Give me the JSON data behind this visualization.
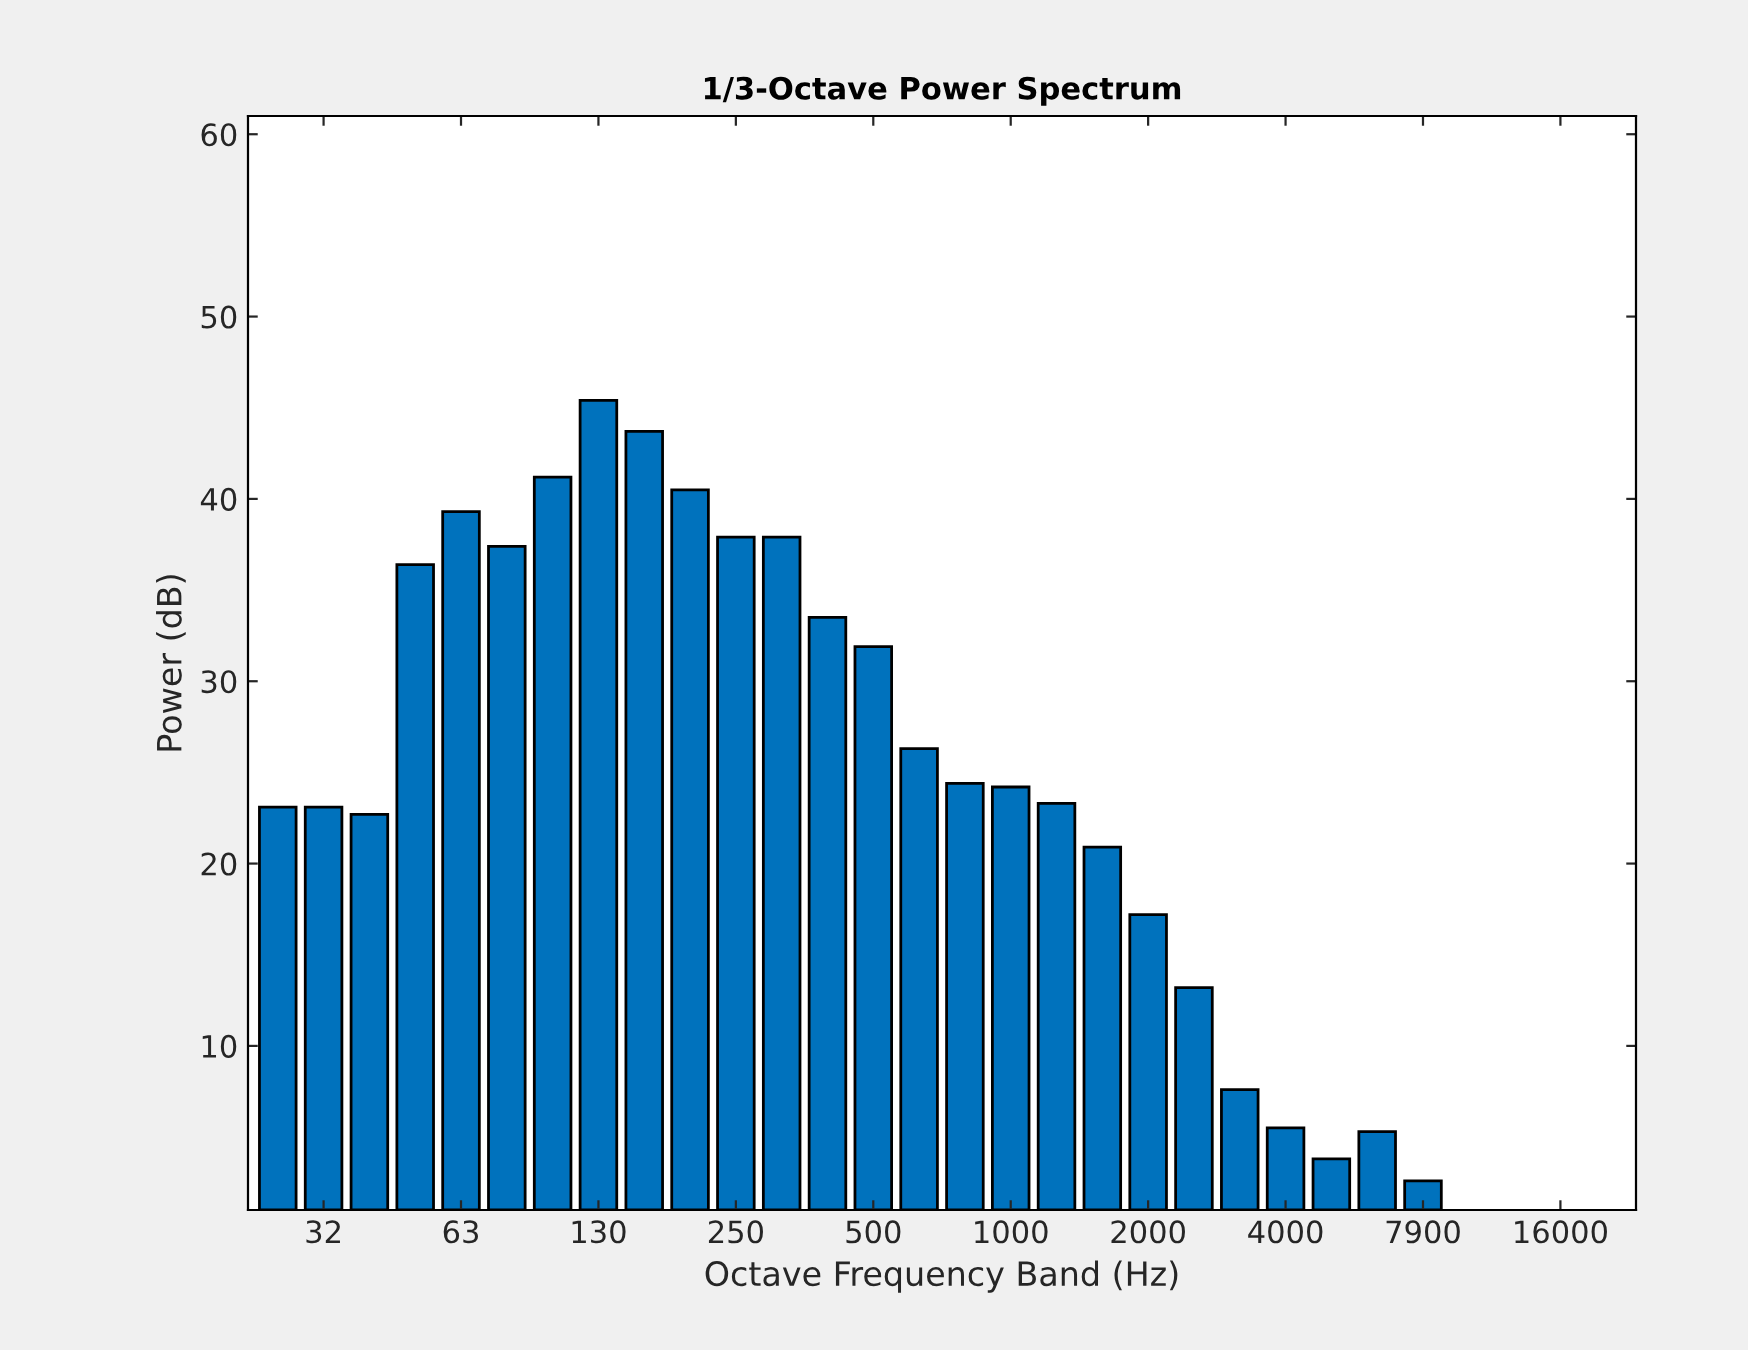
{
  "chart_data": {
    "type": "bar",
    "title": "1/3-Octave Power Spectrum",
    "xlabel": "Octave Frequency Band (Hz)",
    "ylabel": "Power (dB)",
    "categories": [
      null,
      "32",
      null,
      null,
      "63",
      null,
      null,
      "130",
      null,
      null,
      "250",
      null,
      null,
      "500",
      null,
      null,
      "1000",
      null,
      null,
      "2000",
      null,
      null,
      "4000",
      null,
      null,
      "7900",
      null,
      null,
      "16000",
      null
    ],
    "values": [
      23.1,
      23.1,
      22.7,
      36.4,
      39.3,
      37.4,
      41.2,
      45.4,
      43.7,
      40.5,
      37.9,
      37.9,
      33.5,
      31.9,
      26.3,
      24.4,
      24.2,
      23.3,
      20.9,
      17.2,
      13.2,
      7.6,
      5.5,
      3.8,
      5.3,
      2.6,
      null,
      null,
      null,
      null
    ],
    "color": "#0072bd",
    "ylim": [
      1,
      61
    ],
    "yticks": [
      10,
      20,
      30,
      40,
      50,
      60
    ],
    "grid": false
  }
}
